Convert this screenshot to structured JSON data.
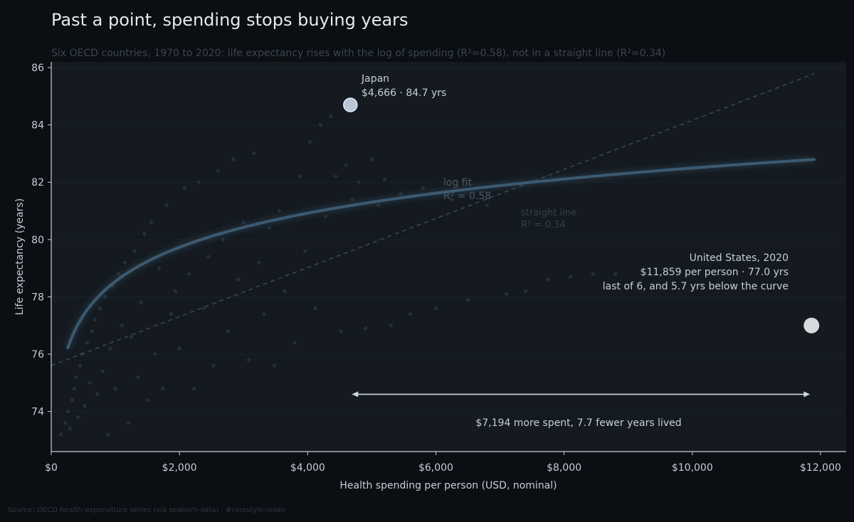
{
  "chart_data": {
    "type": "scatter",
    "title": "Past a point, spending stops buying years",
    "subtitle": "Six OECD countries, 1970 to 2020: life expectancy rises with the log of spending (R²=0.58), not in a straight line (R²=0.34)",
    "xlabel": "Health spending per person (USD, nominal)",
    "ylabel": "Life expectancy (years)",
    "xlim": [
      0,
      12400
    ],
    "ylim": [
      72.6,
      86.2
    ],
    "x_ticks": [
      0,
      2000,
      4000,
      6000,
      8000,
      10000,
      12000
    ],
    "x_tick_labels": [
      "$0",
      "$2,000",
      "$4,000",
      "$6,000",
      "$8,000",
      "$10,000",
      "$12,000"
    ],
    "y_ticks": [
      74,
      76,
      78,
      80,
      82,
      84,
      86
    ],
    "y_tick_labels": [
      "74",
      "76",
      "78",
      "80",
      "82",
      "84",
      "86"
    ],
    "grid": "horizontal",
    "series": [
      {
        "values": [
          {
            "x": 150,
            "y": 73.2
          },
          {
            "x": 220,
            "y": 73.6
          },
          {
            "x": 260,
            "y": 74.0
          },
          {
            "x": 290,
            "y": 73.4
          },
          {
            "x": 330,
            "y": 74.4
          },
          {
            "x": 360,
            "y": 74.8
          },
          {
            "x": 390,
            "y": 75.2
          },
          {
            "x": 420,
            "y": 73.8
          },
          {
            "x": 450,
            "y": 75.6
          },
          {
            "x": 480,
            "y": 76.0
          },
          {
            "x": 520,
            "y": 74.2
          },
          {
            "x": 560,
            "y": 76.4
          },
          {
            "x": 600,
            "y": 75.0
          },
          {
            "x": 640,
            "y": 76.8
          },
          {
            "x": 680,
            "y": 77.2
          },
          {
            "x": 720,
            "y": 74.6
          },
          {
            "x": 760,
            "y": 77.6
          },
          {
            "x": 800,
            "y": 75.4
          },
          {
            "x": 840,
            "y": 78.0
          },
          {
            "x": 880,
            "y": 73.2
          },
          {
            "x": 920,
            "y": 76.2
          },
          {
            "x": 960,
            "y": 78.4
          },
          {
            "x": 1000,
            "y": 74.8
          },
          {
            "x": 1050,
            "y": 78.8
          },
          {
            "x": 1100,
            "y": 77.0
          },
          {
            "x": 1150,
            "y": 79.2
          },
          {
            "x": 1200,
            "y": 73.6
          },
          {
            "x": 1250,
            "y": 76.6
          },
          {
            "x": 1300,
            "y": 79.6
          },
          {
            "x": 1350,
            "y": 75.2
          },
          {
            "x": 1400,
            "y": 77.8
          },
          {
            "x": 1450,
            "y": 80.2
          },
          {
            "x": 1500,
            "y": 74.4
          },
          {
            "x": 1560,
            "y": 80.6
          },
          {
            "x": 1620,
            "y": 76.0
          },
          {
            "x": 1680,
            "y": 79.0
          },
          {
            "x": 1740,
            "y": 74.8
          },
          {
            "x": 1800,
            "y": 81.2
          },
          {
            "x": 1870,
            "y": 77.4
          },
          {
            "x": 1940,
            "y": 78.2
          },
          {
            "x": 2000,
            "y": 76.2
          },
          {
            "x": 2080,
            "y": 81.8
          },
          {
            "x": 2150,
            "y": 78.8
          },
          {
            "x": 2230,
            "y": 74.8
          },
          {
            "x": 2300,
            "y": 82.0
          },
          {
            "x": 2380,
            "y": 77.6
          },
          {
            "x": 2450,
            "y": 79.4
          },
          {
            "x": 2530,
            "y": 75.6
          },
          {
            "x": 2600,
            "y": 82.4
          },
          {
            "x": 2680,
            "y": 80.0
          },
          {
            "x": 2760,
            "y": 76.8
          },
          {
            "x": 2840,
            "y": 82.8
          },
          {
            "x": 2920,
            "y": 78.6
          },
          {
            "x": 3000,
            "y": 80.6
          },
          {
            "x": 3080,
            "y": 75.8
          },
          {
            "x": 3160,
            "y": 83.0
          },
          {
            "x": 3240,
            "y": 79.2
          },
          {
            "x": 3320,
            "y": 77.4
          },
          {
            "x": 3400,
            "y": 80.4
          },
          {
            "x": 3480,
            "y": 75.6
          },
          {
            "x": 3560,
            "y": 81.0
          },
          {
            "x": 3640,
            "y": 78.2
          },
          {
            "x": 3720,
            "y": 80.8
          },
          {
            "x": 3800,
            "y": 76.4
          },
          {
            "x": 3880,
            "y": 82.2
          },
          {
            "x": 3960,
            "y": 79.6
          },
          {
            "x": 4040,
            "y": 83.4
          },
          {
            "x": 4120,
            "y": 77.6
          },
          {
            "x": 4200,
            "y": 84.0
          },
          {
            "x": 4280,
            "y": 80.8
          },
          {
            "x": 4360,
            "y": 84.3
          },
          {
            "x": 4440,
            "y": 82.2
          },
          {
            "x": 4520,
            "y": 76.8
          },
          {
            "x": 4600,
            "y": 82.6
          },
          {
            "x": 4700,
            "y": 81.4
          },
          {
            "x": 4800,
            "y": 82.0
          },
          {
            "x": 4900,
            "y": 76.9
          },
          {
            "x": 5000,
            "y": 82.8
          },
          {
            "x": 5100,
            "y": 81.2
          },
          {
            "x": 5200,
            "y": 82.1
          },
          {
            "x": 5300,
            "y": 77.0
          },
          {
            "x": 5450,
            "y": 81.6
          },
          {
            "x": 5600,
            "y": 77.4
          },
          {
            "x": 5800,
            "y": 81.8
          },
          {
            "x": 6000,
            "y": 77.6
          },
          {
            "x": 6250,
            "y": 81.4
          },
          {
            "x": 6500,
            "y": 77.9
          },
          {
            "x": 6800,
            "y": 81.2
          },
          {
            "x": 7100,
            "y": 78.1
          },
          {
            "x": 7400,
            "y": 78.2
          },
          {
            "x": 7750,
            "y": 78.6
          },
          {
            "x": 8100,
            "y": 78.7
          },
          {
            "x": 8450,
            "y": 78.8
          },
          {
            "x": 8800,
            "y": 78.8
          }
        ]
      }
    ],
    "fits": {
      "log_fit": {
        "label": "log fit",
        "r2": "R² = 0.58",
        "a": 66.67,
        "b": 1.7182
      },
      "linear_fit": {
        "label": "straight line",
        "r2": "R² = 0.34",
        "a": 75.6,
        "b": 0.000856
      }
    },
    "highlights": [
      {
        "name": "Japan",
        "x": 4666,
        "y": 84.7,
        "line1": "Japan",
        "line2": "$4,666  ·  84.7 yrs",
        "color": "#b8c6d8"
      },
      {
        "name": "United States, 2020",
        "x": 11859,
        "y": 77.0,
        "line1": "United States, 2020",
        "line2": "$11,859 per person  ·  77.0 yrs",
        "line3": "last of 6, and 5.7 yrs below the curve",
        "color": "#d7d9db"
      }
    ],
    "comparison": {
      "from_x": 4666,
      "to_x": 11859,
      "y": 74.6,
      "label": "$7,194 more spent,  7.7 fewer years lived"
    },
    "colors": {
      "background": "#0b0e12",
      "panel": "#141a20",
      "log_curve": "#3c5a70",
      "linear_line": "#3d4852",
      "points": "#2b3640",
      "arrow": "#cfd6dd"
    }
  },
  "footer": {
    "source": "Source: OECD health-expenditure series (via seaborn-data)  ·  #cinestyle:nolan"
  }
}
